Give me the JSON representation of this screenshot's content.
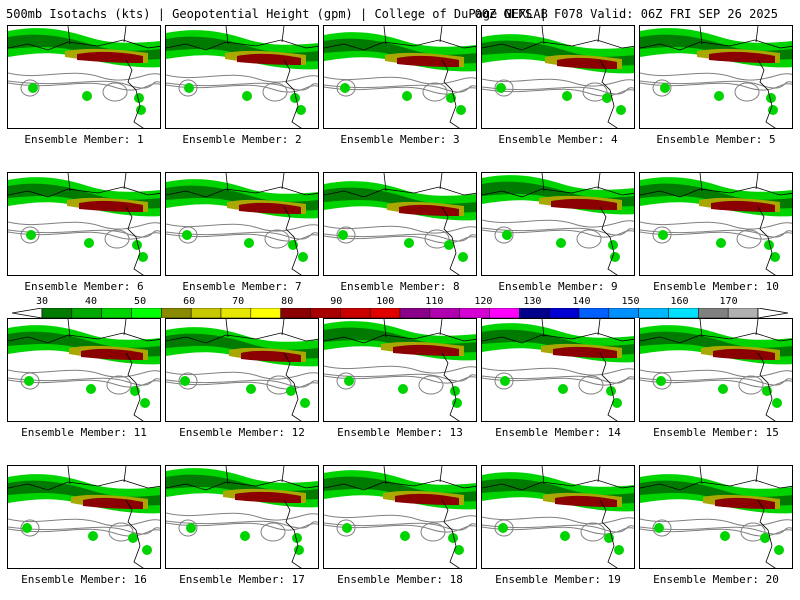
{
  "header": {
    "title_left": "500mb Isotachs (kts) | Geopotential Height (gpm) | College of DuPage NEXLAB",
    "title_right": "00Z GEFS | F078 Valid: 06Z FRI SEP 26 2025"
  },
  "panels": [
    {
      "label": "Ensemble Member: 1"
    },
    {
      "label": "Ensemble Member: 2"
    },
    {
      "label": "Ensemble Member: 3"
    },
    {
      "label": "Ensemble Member: 4"
    },
    {
      "label": "Ensemble Member: 5"
    },
    {
      "label": "Ensemble Member: 6"
    },
    {
      "label": "Ensemble Member: 7"
    },
    {
      "label": "Ensemble Member: 8"
    },
    {
      "label": "Ensemble Member: 9"
    },
    {
      "label": "Ensemble Member: 10"
    },
    {
      "label": "Ensemble Member: 11"
    },
    {
      "label": "Ensemble Member: 12"
    },
    {
      "label": "Ensemble Member: 13"
    },
    {
      "label": "Ensemble Member: 14"
    },
    {
      "label": "Ensemble Member: 15"
    },
    {
      "label": "Ensemble Member: 16"
    },
    {
      "label": "Ensemble Member: 17"
    },
    {
      "label": "Ensemble Member: 18"
    },
    {
      "label": "Ensemble Member: 19"
    },
    {
      "label": "Ensemble Member: 20"
    }
  ],
  "colorbar": {
    "ticks": [
      "30",
      "40",
      "50",
      "60",
      "70",
      "80",
      "90",
      "100",
      "110",
      "120",
      "130",
      "140",
      "150",
      "160",
      "170"
    ],
    "colors": [
      "#007a00",
      "#00a800",
      "#00d400",
      "#00ff00",
      "#8a8a00",
      "#c8c800",
      "#e6e600",
      "#ffff00",
      "#8b0000",
      "#a80000",
      "#c80000",
      "#e00000",
      "#8b008b",
      "#b000b0",
      "#d400d4",
      "#ff00ff",
      "#00008b",
      "#0000d0",
      "#0060ff",
      "#0090ff",
      "#00b8ff",
      "#00e0ff",
      "#808080",
      "#b0b0b0"
    ]
  },
  "map_colors": {
    "jet_light": "#00d400",
    "jet_dark": "#007a00",
    "jet_core": "#8b0000",
    "jet_mid": "#a8a800",
    "height_contour": "#808080",
    "coast": "#000000"
  }
}
